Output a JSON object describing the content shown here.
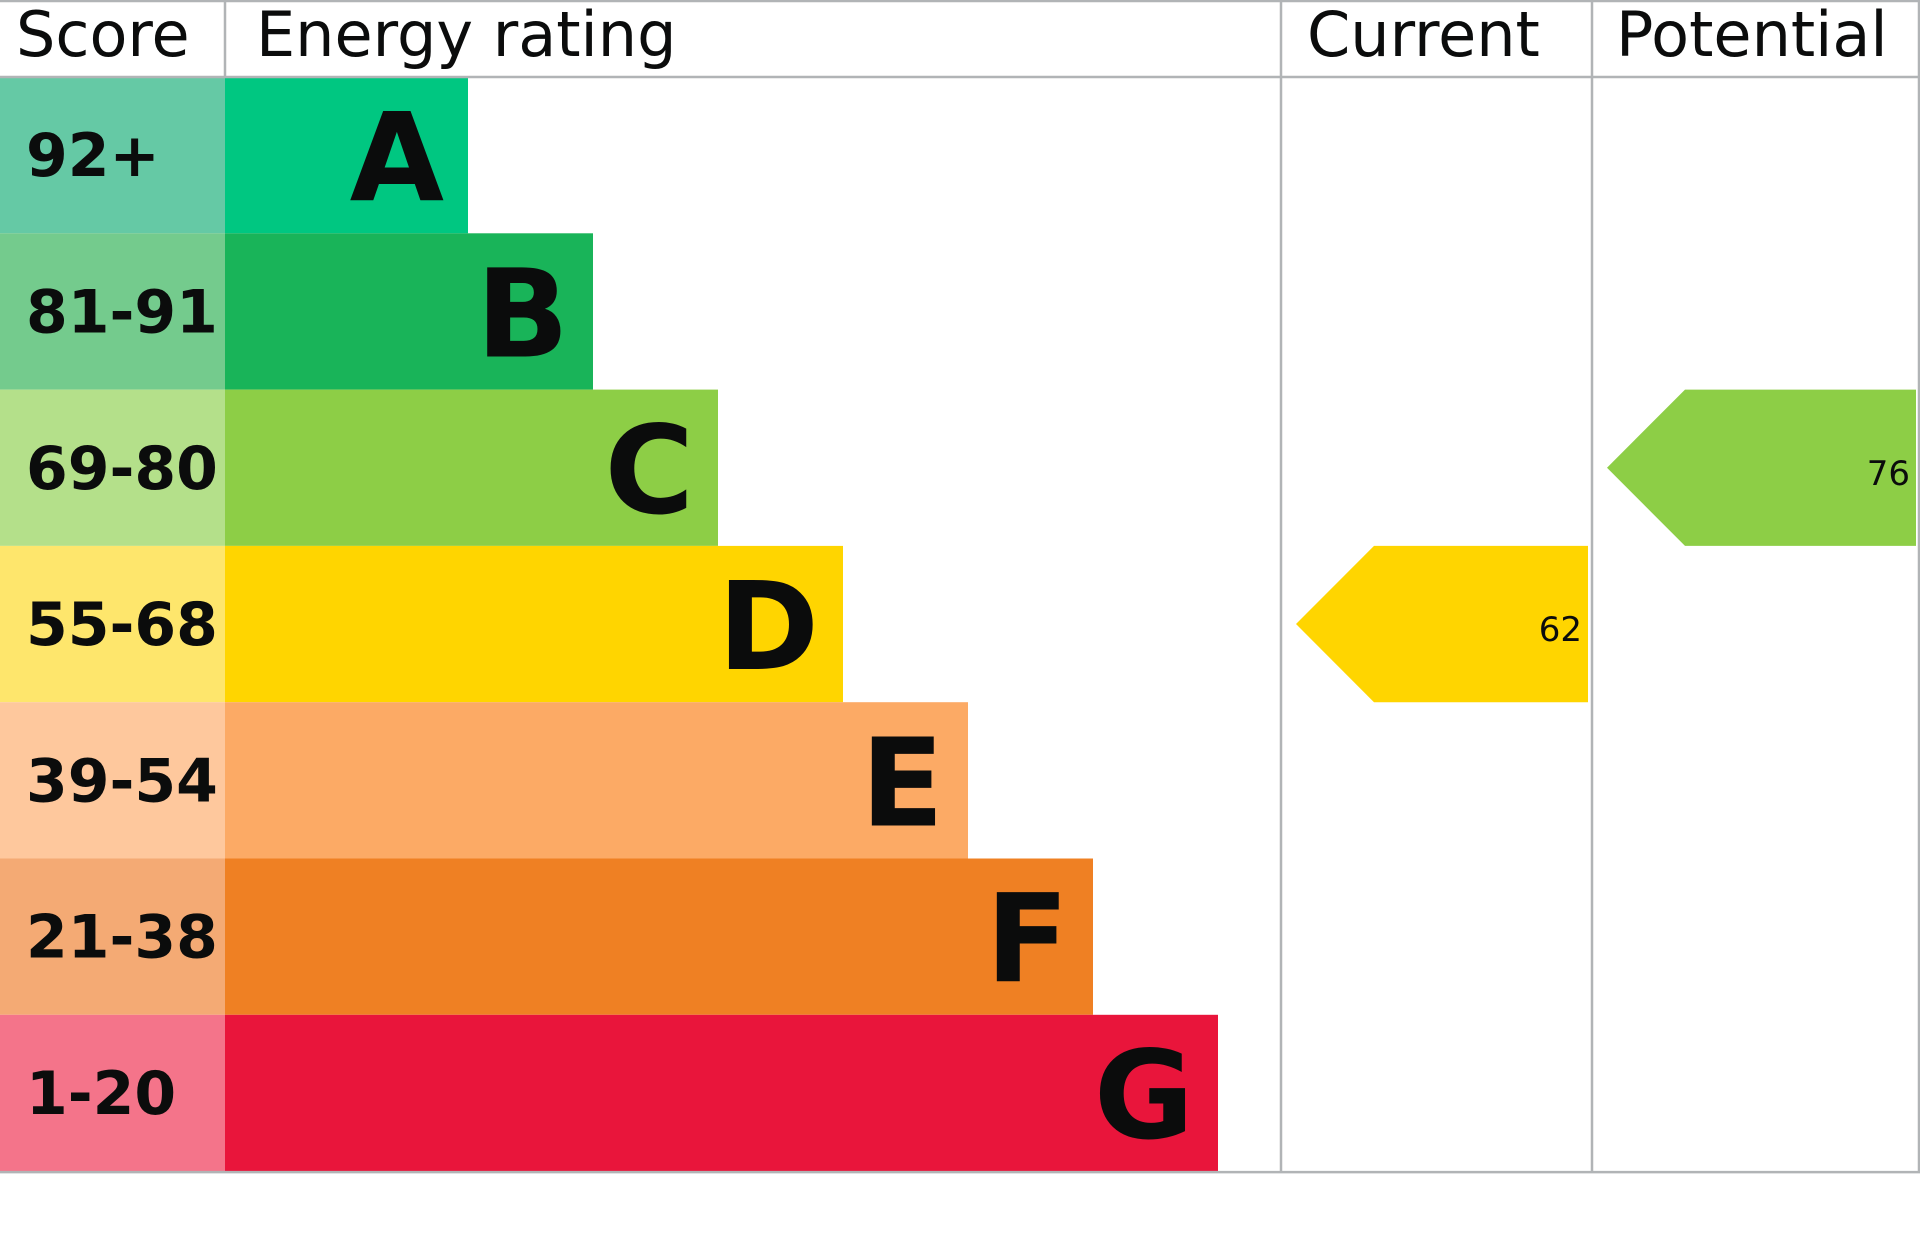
{
  "chart_data": {
    "type": "energy-rating",
    "headers": {
      "score": "Score",
      "rating": "Energy rating",
      "current": "Current",
      "potential": "Potential"
    },
    "bands": [
      {
        "letter": "A",
        "range": "92+",
        "color": "#00c781",
        "score_color": "#65c9a5"
      },
      {
        "letter": "B",
        "range": "81-91",
        "color": "#19b459",
        "score_color": "#74cb8d"
      },
      {
        "letter": "C",
        "range": "69-80",
        "color": "#8dce46",
        "score_color": "#b4e08a"
      },
      {
        "letter": "D",
        "range": "55-68",
        "color": "#ffd500",
        "score_color": "#fee66c"
      },
      {
        "letter": "E",
        "range": "39-54",
        "color": "#fcaa65",
        "score_color": "#fec89d"
      },
      {
        "letter": "F",
        "range": "21-38",
        "color": "#ef8023",
        "score_color": "#f4aa74"
      },
      {
        "letter": "G",
        "range": "1-20",
        "color": "#e9153b",
        "score_color": "#f4748a"
      }
    ],
    "current": {
      "value": "62",
      "band": "D"
    },
    "potential": {
      "value": "76",
      "band": "C"
    }
  }
}
